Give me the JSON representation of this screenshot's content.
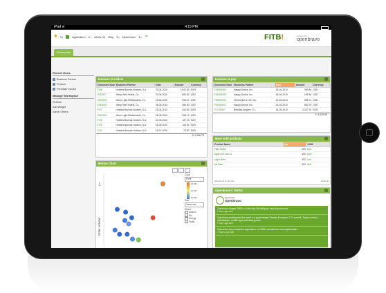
{
  "status": {
    "time": "4:15 PM"
  },
  "menu": {
    "application": "Application",
    "alerts": "Alerts (0)",
    "help": "Help",
    "user": "Openbravo"
  },
  "logos": {
    "fitb": "FITB!",
    "ob_small": "powered by",
    "ob": "openbravo"
  },
  "tabs": [
    "Workspace"
  ],
  "leftnav": {
    "recent_header": "Recent Views",
    "recent": [
      "Business Partner",
      "Product",
      "Purchase Invoice"
    ],
    "manage_header": "Manage Workspace",
    "manage": [
      "Refresh",
      "Add Widget",
      "Admin Others"
    ]
  },
  "collect": {
    "title": "Invoices to collect",
    "headers": [
      "Document Num",
      "Business Partner",
      "Date",
      "Amount",
      "Currency"
    ],
    "rows": [
      [
        "FV/8",
        "Hoteles Buenas Noches, S.A.",
        "23-06-2010",
        "1,542.50",
        "EUR"
      ],
      [
        "SI/10007",
        "Sleep Well Hotels, Co.",
        "23-06-2010",
        "890.82",
        "USD"
      ],
      [
        "SI/10006",
        "Moon Light Restaurants, Co.",
        "18-06-2010",
        "536.07",
        "USD"
      ],
      [
        "SI/10005",
        "Sleep Well Hotels, Co.",
        "26-06-2010",
        "368.50",
        "USD"
      ],
      [
        "FV/7",
        "Hoteles Buenas Noches, S.A.",
        "18-06-2010",
        "344.80",
        "EUR"
      ],
      [
        "SI/10008",
        "Moon Light Restaurants, Co.",
        "18-06-2010",
        "296.72",
        "USD"
      ],
      [
        "FV/5",
        "Hoteles Buenas Noches, S.A.",
        "20-06-2010",
        "187.33",
        "EUR"
      ],
      [
        "FV/6",
        "Hoteles Buenas Noches, S.A.",
        "18-06-2010",
        "146.91",
        "EUR"
      ],
      [
        "FV/2",
        "Hoteles Buenas Noches, S.A.",
        "15-07-2010",
        "75.87",
        "EUR"
      ]
    ],
    "total": "4,498.74"
  },
  "pay": {
    "title": "Invoices to pay",
    "headers": [
      "Document Num",
      "Business Partner",
      "Date",
      "Amount",
      "Currency"
    ],
    "rows": [
      [
        "PI/1000004",
        "Happy Drinks, Inc.",
        "18-06-2010",
        "399.84",
        "USD"
      ],
      [
        "PI/1000005",
        "Happy Drinks, Inc.",
        "18-06-2010",
        "159.46",
        "USD"
      ],
      [
        "PI/1000003",
        "Fruit & Bio is Life, Inc.",
        "22-06-2010",
        "558.71",
        "USD"
      ],
      [
        "PI/1000002",
        "Happy Drinks, Inc.",
        "26-06-2010",
        "882.75",
        "USD"
      ],
      [
        "FC/70010",
        "Bebidas Alegres, S.L.",
        "18-06-2010",
        "2,427.20",
        "EUR"
      ]
    ],
    "total": "4,425.95"
  },
  "sold": {
    "title": "Most sold products",
    "headers": [
      "Product Name",
      "Qty",
      "UOM"
    ],
    "rows": [
      [
        "Plain Water",
        "400",
        "Liter"
      ],
      [
        "Agua con Gas 1L",
        "400",
        "Liter"
      ],
      [
        "Lager Beer",
        "392",
        "Unit"
      ],
      [
        "Ale Beer",
        "392",
        "Unit"
      ]
    ],
    "footer": "Showing 4 of 44 rows",
    "show_all": "Show all"
  },
  "motion": {
    "title": "Motion Chart",
    "xlabel": "",
    "ylabel": "Order Volume",
    "ytick": "Lin",
    "color_label": "Color",
    "color_value": "Profit",
    "size_label": "Size",
    "size_value": "Same size",
    "select_label": "Select",
    "checks": [
      "Alcohol",
      "Bio",
      "Energy",
      "Fruits"
    ],
    "scale": [
      "40,000",
      "20,000",
      "10,000"
    ]
  },
  "chart_data": {
    "type": "scatter",
    "title": "Motion Chart",
    "xlabel": "",
    "ylabel": "Order Volume",
    "series": [
      {
        "points": [
          {
            "x": 0.15,
            "y": 0.5,
            "c": "#2a6ad6"
          },
          {
            "x": 0.26,
            "y": 0.54,
            "c": "#2a6ad6"
          },
          {
            "x": 0.34,
            "y": 0.62,
            "c": "#2a6ad6"
          },
          {
            "x": 0.25,
            "y": 0.66,
            "c": "#3d7ee6"
          },
          {
            "x": 0.3,
            "y": 0.71,
            "c": "#6a9bef"
          },
          {
            "x": 0.12,
            "y": 0.8,
            "c": "#3d7ee6"
          },
          {
            "x": 0.18,
            "y": 0.86,
            "c": "#2a6ad6"
          },
          {
            "x": 0.28,
            "y": 0.86,
            "c": "#2a6ad6"
          },
          {
            "x": 0.35,
            "y": 0.93,
            "c": "#4c8ce8"
          },
          {
            "x": 0.43,
            "y": 0.94,
            "c": "#7ac94f"
          },
          {
            "x": 0.62,
            "y": 0.62,
            "c": "#e74c2a"
          },
          {
            "x": 0.75,
            "y": 0.13,
            "c": "#e98a3a"
          }
        ]
      }
    ]
  },
  "twitter": {
    "title": "Openbravo's Twitter",
    "account": "Openbravo",
    "handle": "Openbravo",
    "tweets": [
      {
        "text": "Openbravo targets SMEs in India http://bit.ly/9gsuiv #erp #opensource",
        "ts": "1 hour ago web"
      },
      {
        "text": "Openbravo participated this week in a great Merger Stanley European CTO summit. Topics covered virtualization, mobile apps and data growth.",
        "ts": "1 hour ago web"
      },
      {
        "text": "Openbravo has completed registration to EXRA; interested in new opportunities.",
        "ts": "2 hours ago web"
      }
    ]
  }
}
